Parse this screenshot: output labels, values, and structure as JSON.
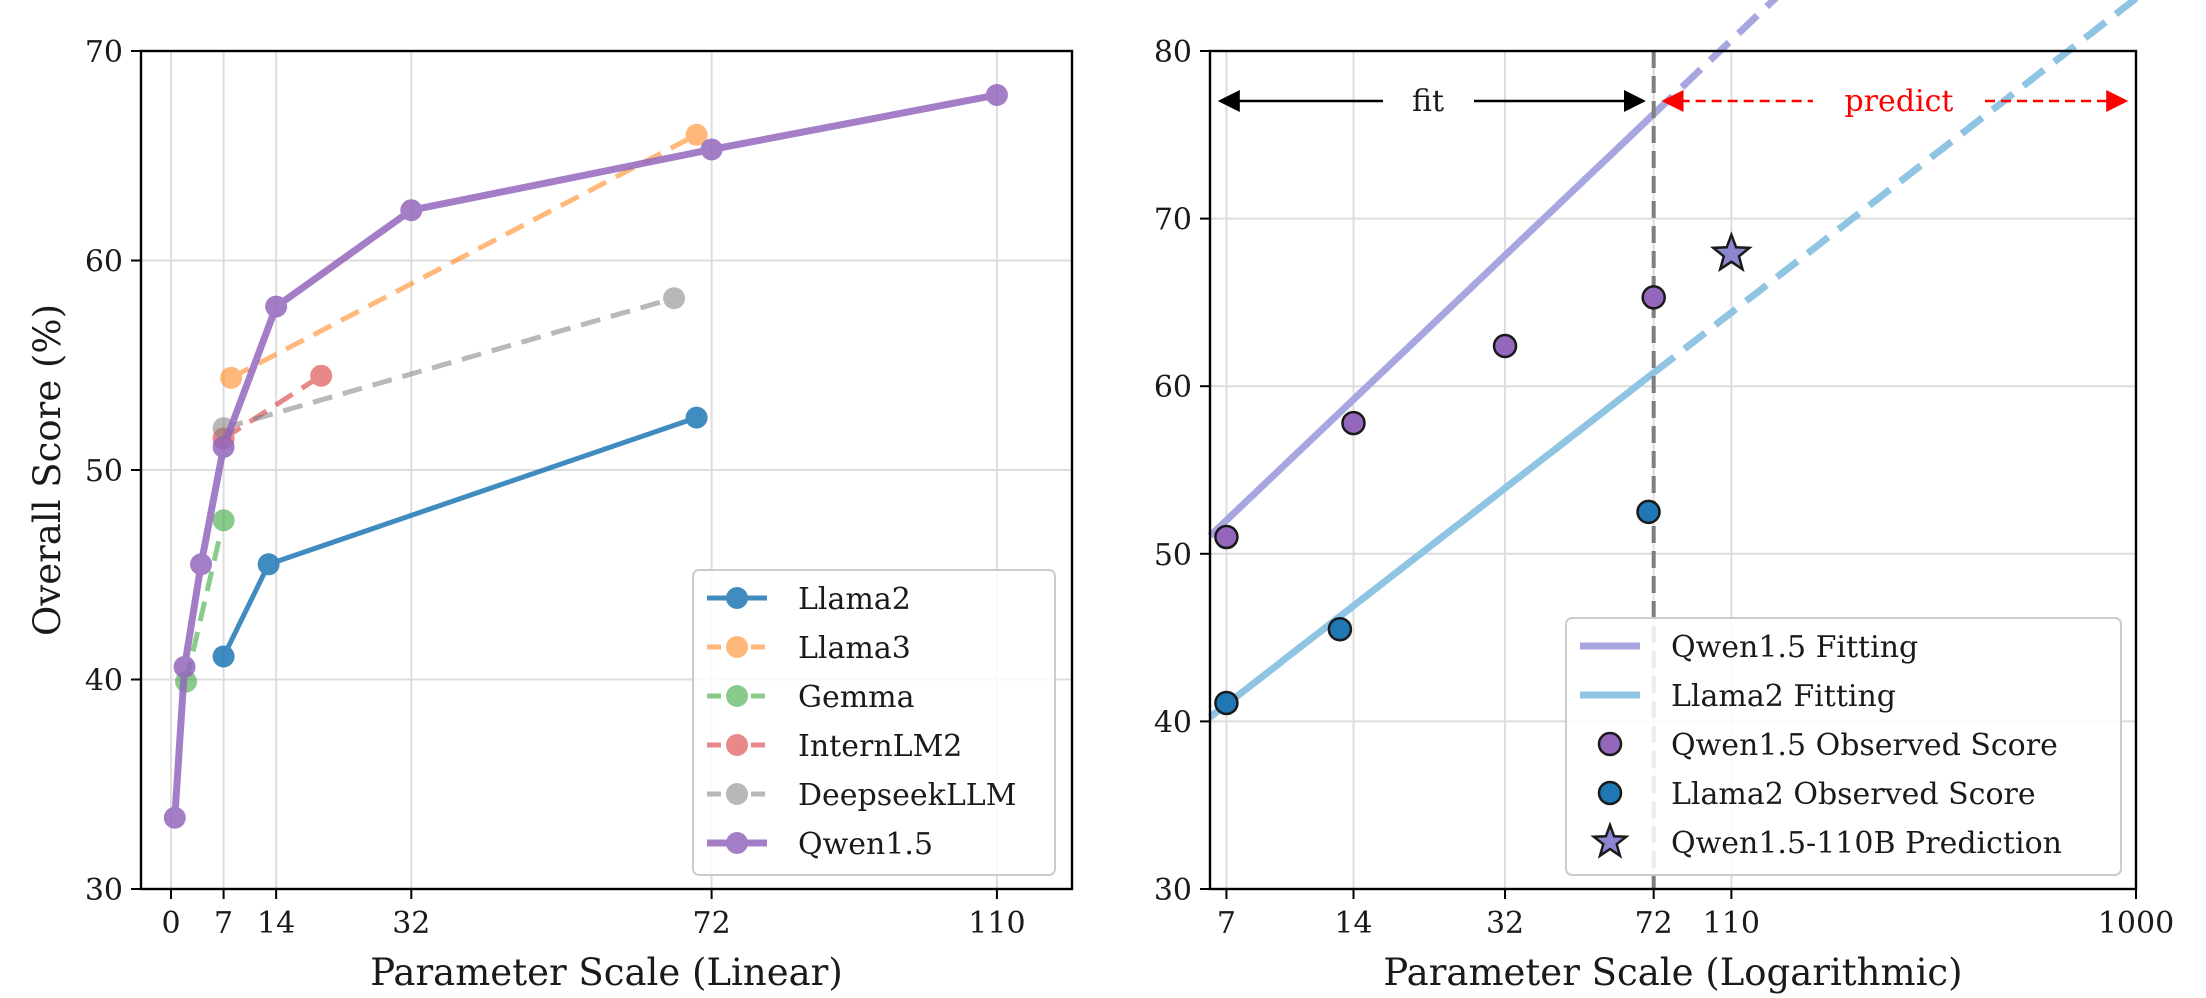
{
  "chart_data": [
    {
      "type": "line",
      "xlabel": "Parameter Scale (Linear)",
      "ylabel": "Overall Score (%)",
      "xlim": [
        -4,
        120
      ],
      "ylim": [
        30,
        70
      ],
      "xticks": [
        0,
        7,
        14,
        32,
        72,
        110
      ],
      "yticks": [
        30,
        40,
        50,
        60,
        70
      ],
      "grid": true,
      "legend_position": "lower-right",
      "series": [
        {
          "name": "Llama2",
          "color": "#1f77b4",
          "style": "solid",
          "opacity": 0.85,
          "x": [
            7,
            13,
            70
          ],
          "y": [
            41.1,
            45.5,
            52.5
          ]
        },
        {
          "name": "Llama3",
          "color": "#ff7f0e",
          "style": "dashed",
          "opacity": 0.55,
          "x": [
            8,
            70
          ],
          "y": [
            54.4,
            66.0
          ]
        },
        {
          "name": "Gemma",
          "color": "#2ca02c",
          "style": "dashed",
          "opacity": 0.55,
          "x": [
            2,
            7
          ],
          "y": [
            39.9,
            47.6
          ]
        },
        {
          "name": "InternLM2",
          "color": "#d62728",
          "style": "dashed",
          "opacity": 0.55,
          "x": [
            7,
            20
          ],
          "y": [
            51.5,
            54.5
          ]
        },
        {
          "name": "DeepseekLLM",
          "color": "#7f7f7f",
          "style": "dashed",
          "opacity": 0.55,
          "x": [
            7,
            67
          ],
          "y": [
            52.0,
            58.2
          ]
        },
        {
          "name": "Qwen1.5",
          "color": "#9467bd",
          "style": "solid",
          "opacity": 0.85,
          "x": [
            0.5,
            1.8,
            4,
            7,
            14,
            32,
            72,
            110
          ],
          "y": [
            33.4,
            40.6,
            45.5,
            51.1,
            57.8,
            62.4,
            65.3,
            67.9
          ]
        }
      ]
    },
    {
      "type": "line",
      "xlabel": "Parameter Scale (Logarithmic)",
      "ylabel": "",
      "xscale": "log",
      "xlim": [
        6.4,
        1000
      ],
      "ylim": [
        30,
        80
      ],
      "xticks": [
        7,
        14,
        32,
        72,
        110,
        1000
      ],
      "yticks": [
        30,
        40,
        50,
        60,
        70,
        80
      ],
      "grid": true,
      "legend_position": "lower-right",
      "divider_x": 72,
      "annotations": {
        "fit": "fit",
        "predict": "predict"
      },
      "fits": [
        {
          "name": "Qwen1.5 Fitting",
          "color": "#a8a6e0",
          "a": 31.76,
          "b": 10.4,
          "x0": 6.4,
          "x1": 1000
        },
        {
          "name": "Llama2 Fitting",
          "color": "#8fc4e3",
          "a": 24.49,
          "b": 8.49,
          "x0": 6.4,
          "x1": 1000
        }
      ],
      "observed": [
        {
          "name": "Qwen1.5 Observed Score",
          "color": "#9467bd",
          "x": [
            7,
            14,
            32,
            72
          ],
          "y": [
            51.0,
            57.8,
            62.4,
            65.3
          ]
        },
        {
          "name": "Llama2 Observed Score",
          "color": "#1f77b4",
          "x": [
            7,
            13,
            70
          ],
          "y": [
            41.1,
            45.5,
            52.5
          ]
        }
      ],
      "prediction": {
        "name": "Qwen1.5-110B Prediction",
        "color": "#8a86d0",
        "x": 110,
        "y": 67.9
      }
    }
  ]
}
